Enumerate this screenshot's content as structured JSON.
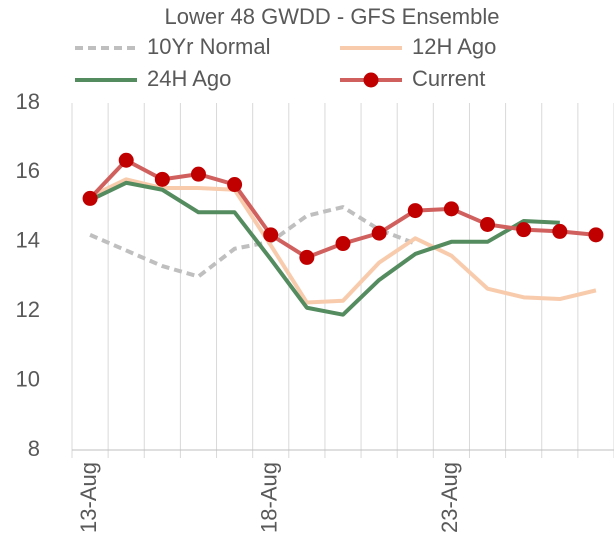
{
  "chart_data": {
    "type": "line",
    "title": "Lower 48 GWDD - GFS Ensemble",
    "categories": [
      "13-Aug",
      null,
      null,
      null,
      null,
      "18-Aug",
      null,
      null,
      null,
      null,
      "23-Aug",
      null,
      null,
      null,
      null
    ],
    "series": [
      {
        "name": "10Yr Normal",
        "color": "#bfbfbf",
        "dashed": true,
        "values": [
          14.2,
          13.75,
          13.3,
          13.0,
          13.8,
          14.0,
          14.75,
          15.0,
          14.35,
          13.95,
          null,
          null,
          null,
          null,
          null
        ]
      },
      {
        "name": "12H Ago",
        "color": "#f8cbad",
        "values": [
          15.3,
          15.8,
          15.55,
          15.55,
          15.5,
          13.9,
          12.25,
          12.3,
          13.4,
          14.1,
          13.6,
          12.65,
          12.4,
          12.35,
          12.6
        ]
      },
      {
        "name": "24H Ago",
        "color": "#548b5f",
        "values": [
          15.2,
          15.7,
          15.5,
          14.85,
          14.85,
          13.5,
          12.1,
          11.9,
          12.9,
          13.65,
          14.0,
          14.0,
          14.6,
          14.55,
          null
        ]
      },
      {
        "name": "Current",
        "color": "#d0605e",
        "marker_color": "#c00000",
        "markers": true,
        "values": [
          15.25,
          16.35,
          15.8,
          15.95,
          15.65,
          14.2,
          13.55,
          13.95,
          14.25,
          14.9,
          14.95,
          14.5,
          14.35,
          14.3,
          14.2
        ]
      }
    ],
    "ylim": [
      8,
      18
    ],
    "yticks": [
      8,
      10,
      12,
      14,
      16,
      18
    ],
    "grid_x": true,
    "grid_y": false,
    "legend": "top"
  }
}
